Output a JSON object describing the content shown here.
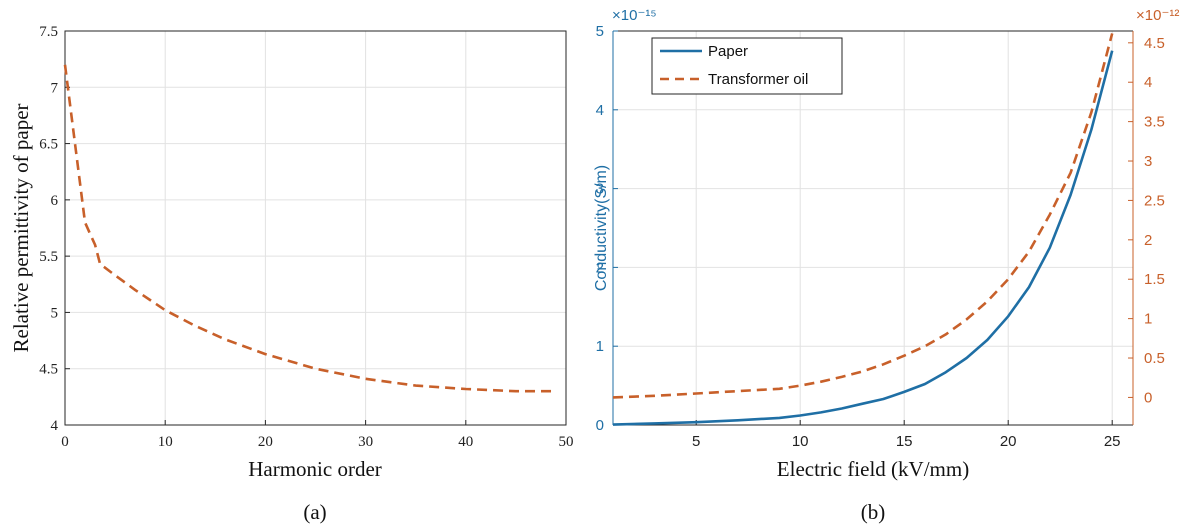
{
  "colors": {
    "blue": "#1f6fa5",
    "orange": "#c8602a",
    "grid": "#e2e2e2",
    "axis": "#262626"
  },
  "chart_data": [
    {
      "type": "line",
      "panel_label": "(a)",
      "xlabel": "Harmonic order",
      "ylabel": "Relative permittivity of paper",
      "xlim": [
        0,
        50
      ],
      "ylim": [
        4,
        7.5
      ],
      "xticks": [
        0,
        10,
        20,
        30,
        40,
        50
      ],
      "yticks": [
        4,
        4.5,
        5,
        5.5,
        6,
        6.5,
        7,
        7.5
      ],
      "ytick_labels": [
        "4",
        "4.5",
        "5",
        "5.5",
        "6",
        "6.5",
        "7",
        "7.5"
      ],
      "grid": true,
      "series": [
        {
          "style": "dashed",
          "color": "#c8602a",
          "x": [
            0,
            0.5,
            1,
            1.5,
            2,
            2.5,
            3,
            3.5,
            5,
            7,
            10,
            13,
            16,
            20,
            25,
            30,
            35,
            40,
            45,
            49
          ],
          "y": [
            7.2,
            6.85,
            6.5,
            6.15,
            5.8,
            5.7,
            5.6,
            5.43,
            5.33,
            5.2,
            5.02,
            4.88,
            4.76,
            4.63,
            4.5,
            4.41,
            4.35,
            4.32,
            4.3,
            4.3
          ]
        }
      ]
    },
    {
      "type": "line",
      "panel_label": "(b)",
      "xlabel": "Electric field (kV/mm)",
      "ylabel": "Conductivity(S/m)",
      "xlim": [
        1,
        26
      ],
      "xticks": [
        5,
        10,
        15,
        20,
        25
      ],
      "ylim": [
        0,
        5
      ],
      "yticks": [
        0,
        1,
        2,
        3,
        4,
        5
      ],
      "y_exponent": "×10⁻¹⁵",
      "y2lim": [
        -0.35,
        4.65
      ],
      "y2ticks": [
        0,
        0.5,
        1,
        1.5,
        2,
        2.5,
        3,
        3.5,
        4,
        4.5
      ],
      "y2tick_labels": [
        "0",
        "0.5",
        "1",
        "1.5",
        "2",
        "2.5",
        "3",
        "3.5",
        "4",
        "4.5"
      ],
      "y2_exponent": "×10⁻¹²",
      "legend_position": "top-left",
      "grid": true,
      "series": [
        {
          "name": "Paper",
          "axis": "left",
          "style": "solid",
          "color": "#1f6fa5",
          "x": [
            1,
            3,
            5,
            7,
            9,
            10,
            11,
            12,
            13,
            14,
            15,
            16,
            17,
            18,
            19,
            20,
            21,
            22,
            23,
            24,
            25
          ],
          "y": [
            0.005,
            0.02,
            0.035,
            0.06,
            0.09,
            0.12,
            0.16,
            0.21,
            0.27,
            0.33,
            0.42,
            0.52,
            0.67,
            0.85,
            1.08,
            1.38,
            1.75,
            2.25,
            2.92,
            3.75,
            4.75
          ]
        },
        {
          "name": "Transformer oil",
          "axis": "right",
          "style": "dashed",
          "color": "#c8602a",
          "x": [
            1,
            3,
            5,
            7,
            9,
            10,
            11,
            12,
            13,
            14,
            15,
            16,
            17,
            18,
            19,
            20,
            21,
            22,
            23,
            24,
            25
          ],
          "y": [
            0.0,
            0.02,
            0.05,
            0.08,
            0.11,
            0.15,
            0.2,
            0.26,
            0.33,
            0.42,
            0.53,
            0.65,
            0.8,
            0.99,
            1.22,
            1.5,
            1.85,
            2.32,
            2.85,
            3.62,
            4.62
          ]
        }
      ]
    }
  ]
}
